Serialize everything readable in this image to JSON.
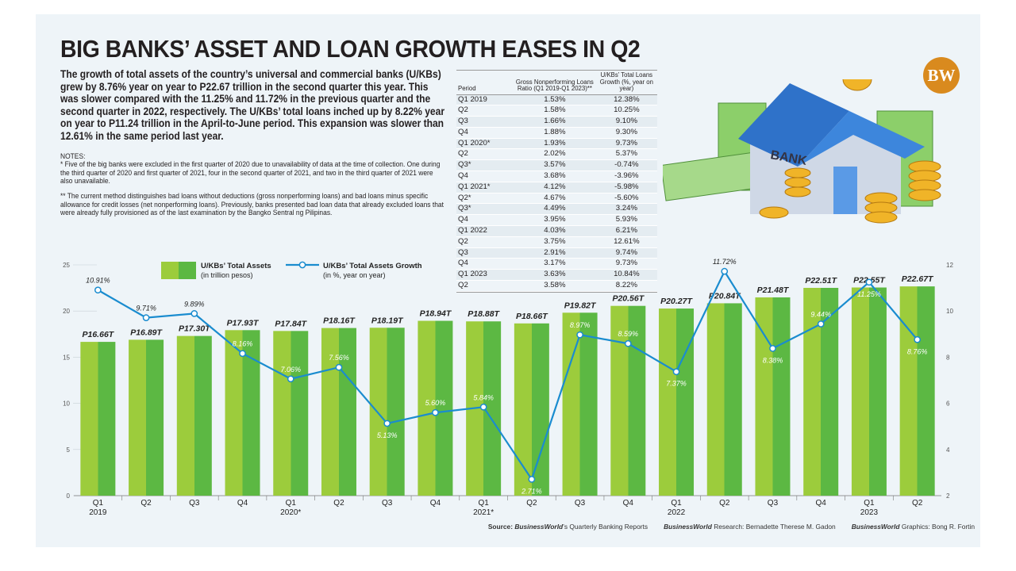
{
  "header": {
    "title": "BIG BANKS’ ASSET AND LOAN GROWTH EASES IN Q2",
    "logo": "BW",
    "intro": "The growth of total assets of the country’s universal and commercial banks (U/KBs) grew by 8.76% year on year to P22.67 trillion in the second quarter this year. This was slower compared with the 11.25% and 11.72% in the previous quarter and the second quarter in 2022, respectively. The U/KBs’ total loans inched up by 8.22% year on year to P11.24 trillion in the April-to-June period. This expansion was slower than 12.61% in the same period last year."
  },
  "notes": {
    "heading": "NOTES:",
    "note1": "* Five of the big banks were excluded in the first quarter of 2020 due to unavailability of data at the time of collection. One during the third quarter of 2020 and first quarter of 2021, four in the second quarter of 2021, and two in the third quarter of 2021 were also unavailable.",
    "note2": "** The current method distinguishes bad loans without deductions (gross nonperforming loans) and bad loans minus specific allowance for credit losses (net nonperforming loans). Previously, banks presented bad loan data that already excluded loans that were already fully provisioned as of the last examination by the Bangko Sentral ng Pilipinas."
  },
  "table": {
    "headers": [
      "Period",
      "Gross Nonperforming Loans Ratio (Q1 2019-Q1 2023)**",
      "U/KBs’ Total Loans Growth (%, year on year)"
    ],
    "rows": [
      [
        "Q1 2019",
        "1.53%",
        "12.38%"
      ],
      [
        "Q2",
        "1.58%",
        "10.25%"
      ],
      [
        "Q3",
        "1.66%",
        "9.10%"
      ],
      [
        "Q4",
        "1.88%",
        "9.30%"
      ],
      [
        "Q1 2020*",
        "1.93%",
        "9.73%"
      ],
      [
        "Q2",
        "2.02%",
        "5.37%"
      ],
      [
        "Q3*",
        "3.57%",
        "-0.74%"
      ],
      [
        "Q4",
        "3.68%",
        "-3.96%"
      ],
      [
        "Q1 2021*",
        "4.12%",
        "-5.98%"
      ],
      [
        "Q2*",
        "4.67%",
        "-5.60%"
      ],
      [
        "Q3*",
        "4.49%",
        "3.24%"
      ],
      [
        "Q4",
        "3.95%",
        "5.93%"
      ],
      [
        "Q1 2022",
        "4.03%",
        "6.21%"
      ],
      [
        "Q2",
        "3.75%",
        "12.61%"
      ],
      [
        "Q3",
        "2.91%",
        "9.74%"
      ],
      [
        "Q4",
        "3.17%",
        "9.73%"
      ],
      [
        "Q1 2023",
        "3.63%",
        "10.84%"
      ],
      [
        "Q2",
        "3.58%",
        "8.22%"
      ]
    ]
  },
  "illustration": {
    "sign": "BANK"
  },
  "chart_data": {
    "type": "bar+line",
    "categories": [
      "Q1 2019",
      "Q2",
      "Q3",
      "Q4",
      "Q1 2020*",
      "Q2",
      "Q3",
      "Q4",
      "Q1 2021*",
      "Q2",
      "Q3",
      "Q4",
      "Q1 2022",
      "Q2",
      "Q3",
      "Q4",
      "Q1 2023",
      "Q2"
    ],
    "category_labels": [
      [
        "Q1",
        "2019"
      ],
      [
        "Q2",
        ""
      ],
      [
        "Q3",
        ""
      ],
      [
        "Q4",
        ""
      ],
      [
        "Q1",
        "2020*"
      ],
      [
        "Q2",
        ""
      ],
      [
        "Q3",
        ""
      ],
      [
        "Q4",
        ""
      ],
      [
        "Q1",
        "2021*"
      ],
      [
        "Q2",
        ""
      ],
      [
        "Q3",
        ""
      ],
      [
        "Q4",
        ""
      ],
      [
        "Q1",
        "2022"
      ],
      [
        "Q2",
        ""
      ],
      [
        "Q3",
        ""
      ],
      [
        "Q4",
        ""
      ],
      [
        "Q1",
        "2023"
      ],
      [
        "Q2",
        ""
      ]
    ],
    "series": [
      {
        "name": "U/KBs’ Total Assets",
        "sub": "(in trillion pesos)",
        "type": "bar",
        "axis": "left",
        "color": "#6cbf3c",
        "values": [
          16.66,
          16.89,
          17.3,
          17.93,
          17.84,
          18.16,
          18.19,
          18.94,
          18.88,
          18.66,
          19.82,
          20.56,
          20.27,
          20.84,
          21.48,
          22.51,
          22.55,
          22.67
        ],
        "labels": [
          "P16.66T",
          "P16.89T",
          "P17.30T",
          "P17.93T",
          "P17.84T",
          "P18.16T",
          "P18.19T",
          "P18.94T",
          "P18.88T",
          "P18.66T",
          "P19.82T",
          "P20.56T",
          "P20.27T",
          "P20.84T",
          "P21.48T",
          "P22.51T",
          "P22.55T",
          "P22.67T"
        ]
      },
      {
        "name": "U/KBs’ Total Assets Growth",
        "sub": "(in %, year on year)",
        "type": "line",
        "axis": "right",
        "color": "#1a8ccf",
        "values": [
          10.91,
          9.71,
          9.89,
          8.16,
          7.06,
          7.56,
          5.13,
          5.6,
          5.84,
          2.71,
          8.97,
          8.59,
          7.37,
          11.72,
          8.38,
          9.44,
          11.25,
          8.76
        ],
        "labels": [
          "10.91%",
          "9.71%",
          "9.89%",
          "8.16%",
          "7.06%",
          "7.56%",
          "5.13%",
          "5.60%",
          "5.84%",
          "2.71%",
          "8.97%",
          "8.59%",
          "7.37%",
          "11.72%",
          "8.38%",
          "9.44%",
          "11.25%",
          "8.76%"
        ]
      }
    ],
    "left_axis": {
      "range": [
        0,
        25
      ],
      "ticks": [
        "0",
        "5",
        "10",
        "15",
        "20",
        "25"
      ]
    },
    "right_axis": {
      "range": [
        2,
        12
      ],
      "ticks": [
        "2",
        "4",
        "6",
        "8",
        "10",
        "12"
      ]
    },
    "legend_position": "top-left",
    "grid": false
  },
  "footer": {
    "source_label": "Source:",
    "source_brand": "BusinessWorld",
    "source_text": "’s Quarterly Banking Reports",
    "research_brand": "BusinessWorld",
    "research_text": " Research: Bernadette Therese M. Gadon",
    "graphics_brand": "BusinessWorld",
    "graphics_text": " Graphics: Bong R. Fortin"
  }
}
